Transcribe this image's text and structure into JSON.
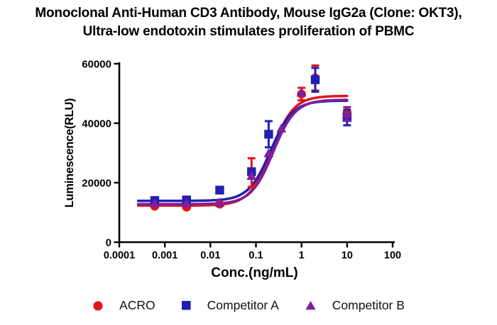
{
  "title": {
    "line1": "Monoclonal Anti-Human CD3 Antibody, Mouse IgG2a (Clone: OKT3),",
    "line2": "Ultra-low endotoxin stimulates proliferation of PBMC"
  },
  "chart_data": {
    "type": "scatter",
    "subtype": "dose-response 4PL fit, log x-axis",
    "xlabel": "Conc.(ng/mL)",
    "ylabel": "Luminescence(RLU)",
    "x_axis": {
      "scale": "log10",
      "tick_values": [
        0.0001,
        0.001,
        0.01,
        0.1,
        1,
        10,
        100
      ],
      "tick_labels": [
        "0.0001",
        "0.001",
        "0.01",
        "0.1",
        "1",
        "10",
        "100"
      ]
    },
    "y_axis": {
      "range": [
        0,
        60000
      ],
      "tick_values": [
        0,
        20000,
        40000,
        60000
      ],
      "tick_labels": [
        "0",
        "20000",
        "40000",
        "60000"
      ]
    },
    "axis_color": "#000000",
    "legend_position": "bottom",
    "series": [
      {
        "name": "ACRO",
        "marker": "circle",
        "color": "#E01519",
        "points": [
          {
            "x": 0.0006,
            "y": 12100
          },
          {
            "x": 0.003,
            "y": 11800
          },
          {
            "x": 0.016,
            "y": 12800
          },
          {
            "x": 0.08,
            "y": 23400,
            "err": 4800
          },
          {
            "x": 1,
            "y": 49800,
            "err": 2100
          },
          {
            "x": 2,
            "y": 55200,
            "err": 4200
          },
          {
            "x": 10,
            "y": 43600
          }
        ],
        "fit": {
          "bottom": 12300,
          "top": 49200,
          "ec50": 0.22,
          "hill": 1.8,
          "x_min": 0.00026,
          "x_max": 10
        }
      },
      {
        "name": "Competitor A",
        "marker": "square",
        "color": "#2020B2",
        "points": [
          {
            "x": 0.0006,
            "y": 14000
          },
          {
            "x": 0.003,
            "y": 14200
          },
          {
            "x": 0.016,
            "y": 17500
          },
          {
            "x": 0.08,
            "y": 23700
          },
          {
            "x": 0.19,
            "y": 36300,
            "err": 4400
          },
          {
            "x": 2,
            "y": 54600,
            "err": 4000
          },
          {
            "x": 10,
            "y": 41900,
            "err": 2600
          }
        ],
        "fit": {
          "bottom": 13900,
          "top": 47600,
          "ec50": 0.21,
          "hill": 1.8,
          "x_min": 0.00026,
          "x_max": 10
        }
      },
      {
        "name": "Competitor B",
        "marker": "triangle",
        "color": "#7E1F9C",
        "points": [
          {
            "x": 0.0006,
            "y": 13100
          },
          {
            "x": 0.003,
            "y": 13100
          },
          {
            "x": 0.016,
            "y": 13300
          },
          {
            "x": 0.08,
            "y": 22300
          },
          {
            "x": 0.19,
            "y": 29900
          },
          {
            "x": 0.36,
            "y": 38200
          },
          {
            "x": 1,
            "y": 50300
          },
          {
            "x": 10,
            "y": 43100,
            "err": 2300
          }
        ],
        "fit": {
          "bottom": 12800,
          "top": 47900,
          "ec50": 0.24,
          "hill": 1.8,
          "x_min": 0.00026,
          "x_max": 10
        }
      }
    ]
  }
}
